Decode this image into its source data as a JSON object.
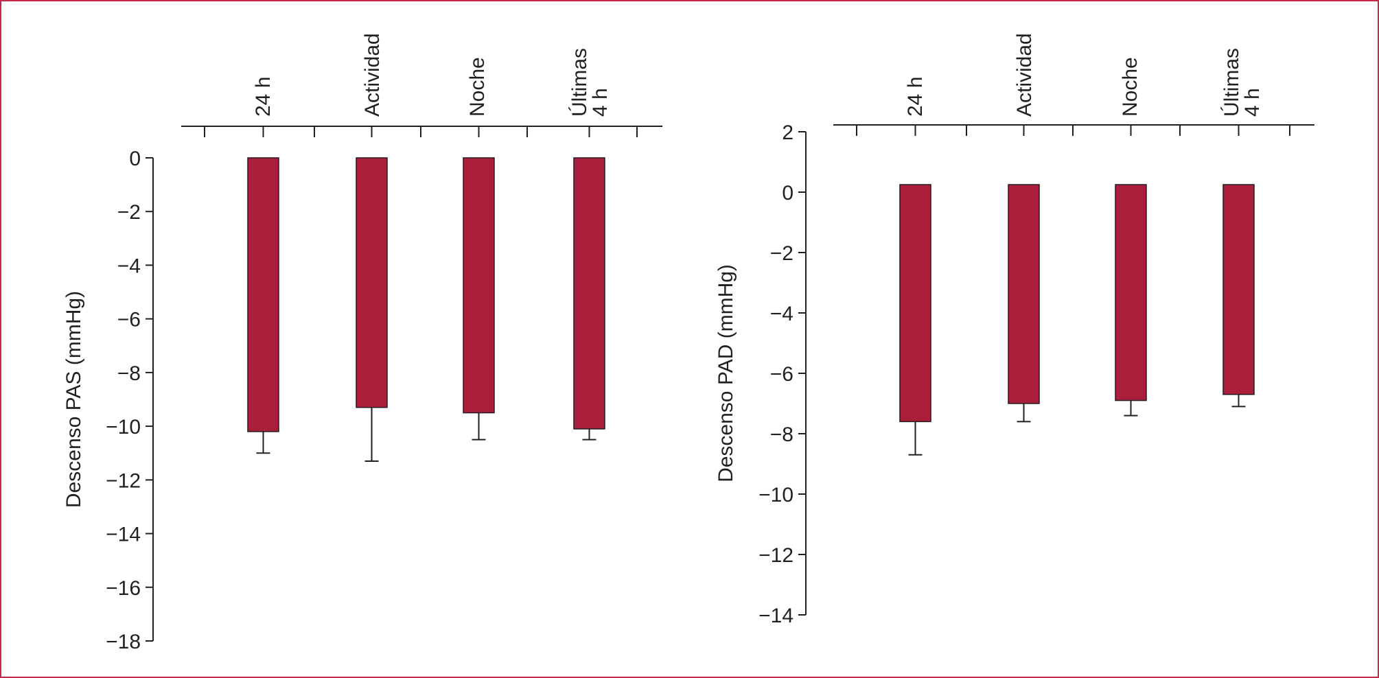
{
  "colors": {
    "bar": "#ab1e3b",
    "axis": "#231f20",
    "frame": "#c8294a"
  },
  "chart_data": [
    {
      "type": "bar",
      "categories": [
        "24 h",
        "Actividad",
        "Noche",
        "Últimas 4 h"
      ],
      "category_lines": [
        [
          "24 h"
        ],
        [
          "Actividad"
        ],
        [
          "Noche"
        ],
        [
          "Últimas",
          "4 h"
        ]
      ],
      "series": [
        {
          "values": [
            -10.2,
            -9.3,
            -9.5,
            -10.1
          ]
        }
      ],
      "error_low": [
        -11.0,
        -11.3,
        -10.5,
        -10.5
      ],
      "ylabel": "Descenso PAS (mmHg)",
      "ylim": [
        -18,
        0
      ],
      "yticks": [
        0,
        -2,
        -4,
        -6,
        -8,
        -10,
        -12,
        -14,
        -16,
        -18
      ],
      "ytick_labels": [
        "0",
        "−2",
        "−4",
        "−6",
        "−8",
        "−10",
        "−12",
        "−14",
        "−16",
        "−18"
      ],
      "xaxis_position": "top",
      "bar_baseline": 0,
      "grid": false
    },
    {
      "type": "bar",
      "categories": [
        "24 h",
        "Actividad",
        "Noche",
        "Últimas 4 h"
      ],
      "category_lines": [
        [
          "24 h"
        ],
        [
          "Actividad"
        ],
        [
          "Noche"
        ],
        [
          "Últimas",
          "4 h"
        ]
      ],
      "series": [
        {
          "values": [
            -7.6,
            -7.0,
            -6.9,
            -6.7
          ]
        }
      ],
      "error_low": [
        -8.7,
        -7.6,
        -7.4,
        -7.1
      ],
      "ylabel": "Descenso PAD (mmHg)",
      "ylim": [
        -14,
        2
      ],
      "yticks": [
        2,
        0,
        -2,
        -4,
        -6,
        -8,
        -10,
        -12,
        -14
      ],
      "ytick_labels": [
        "2",
        "0",
        "−2",
        "−4",
        "−6",
        "−8",
        "−10",
        "−12",
        "−14"
      ],
      "xaxis_position": "top",
      "bar_baseline": 0.25,
      "grid": false
    }
  ]
}
